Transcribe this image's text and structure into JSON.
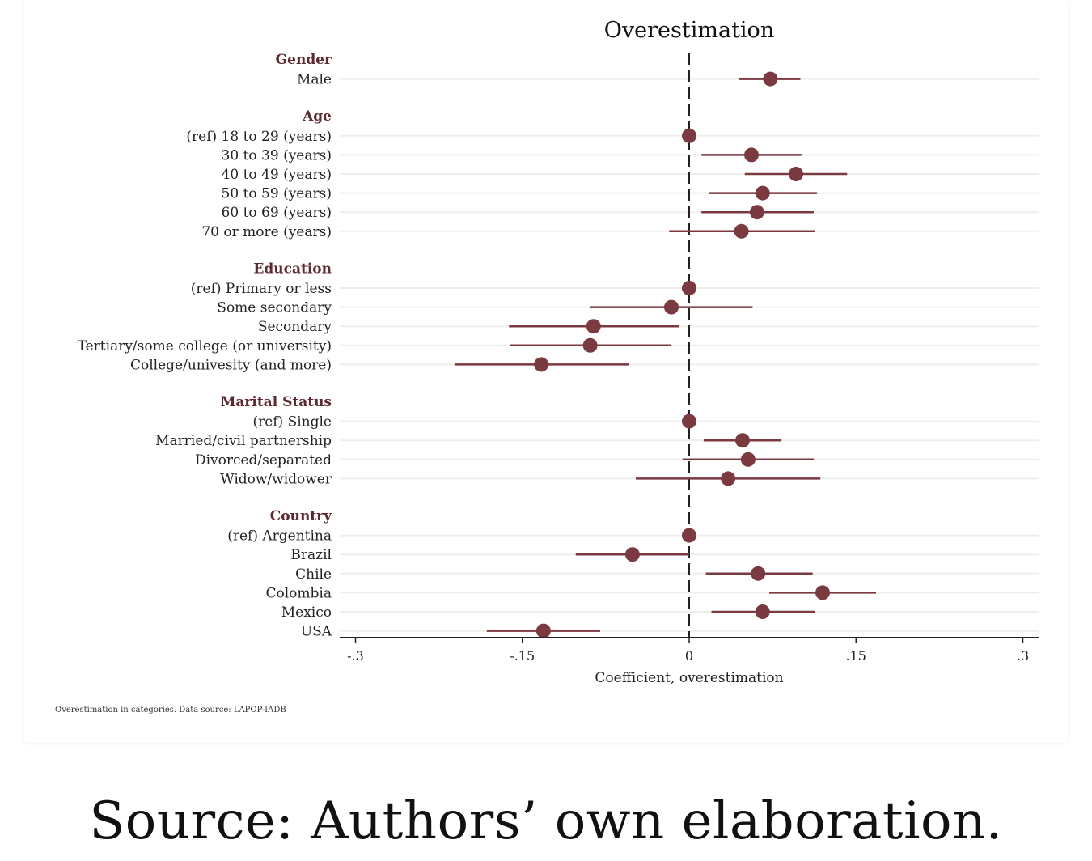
{
  "chart_data": {
    "type": "scatter",
    "title": "Overestimation",
    "xlabel": "Coefficient, overestimation",
    "xlim": [
      -0.3,
      0.3
    ],
    "xticks": [
      {
        "value": -0.3,
        "label": "-.3"
      },
      {
        "value": -0.15,
        "label": "-.15"
      },
      {
        "value": 0,
        "label": "0"
      },
      {
        "value": 0.15,
        "label": ".15"
      },
      {
        "value": 0.3,
        "label": ".3"
      }
    ],
    "reference_line": 0,
    "grid": true,
    "groups": [
      {
        "name": "Gender",
        "items": [
          {
            "label": "Male",
            "estimate": 0.073,
            "lower": 0.045,
            "upper": 0.1
          }
        ]
      },
      {
        "name": "Age",
        "items": [
          {
            "label": "(ref) 18 to 29 (years)",
            "estimate": 0.0,
            "lower": 0.0,
            "upper": 0.0
          },
          {
            "label": "30 to 39 (years)",
            "estimate": 0.056,
            "lower": 0.011,
            "upper": 0.101
          },
          {
            "label": "40 to 49 (years)",
            "estimate": 0.096,
            "lower": 0.05,
            "upper": 0.142
          },
          {
            "label": "50 to 59 (years)",
            "estimate": 0.066,
            "lower": 0.018,
            "upper": 0.115
          },
          {
            "label": "60 to 69 (years)",
            "estimate": 0.061,
            "lower": 0.011,
            "upper": 0.112
          },
          {
            "label": "70 or more (years)",
            "estimate": 0.047,
            "lower": -0.018,
            "upper": 0.113
          }
        ]
      },
      {
        "name": "Education",
        "items": [
          {
            "label": "(ref) Primary or less",
            "estimate": 0.0,
            "lower": 0.0,
            "upper": 0.0
          },
          {
            "label": "Some secondary",
            "estimate": -0.016,
            "lower": -0.089,
            "upper": 0.057
          },
          {
            "label": "Secondary",
            "estimate": -0.086,
            "lower": -0.162,
            "upper": -0.009
          },
          {
            "label": "Tertiary/some college (or university)",
            "estimate": -0.089,
            "lower": -0.161,
            "upper": -0.016
          },
          {
            "label": "College/univesity (and more)",
            "estimate": -0.133,
            "lower": -0.211,
            "upper": -0.054
          }
        ]
      },
      {
        "name": "Marital Status",
        "items": [
          {
            "label": "(ref) Single",
            "estimate": 0.0,
            "lower": 0.0,
            "upper": 0.0
          },
          {
            "label": "Married/civil partnership",
            "estimate": 0.048,
            "lower": 0.013,
            "upper": 0.083
          },
          {
            "label": "Divorced/separated",
            "estimate": 0.053,
            "lower": -0.006,
            "upper": 0.112
          },
          {
            "label": "Widow/widower",
            "estimate": 0.035,
            "lower": -0.048,
            "upper": 0.118
          }
        ]
      },
      {
        "name": "Country",
        "items": [
          {
            "label": "(ref) Argentina",
            "estimate": 0.0,
            "lower": 0.0,
            "upper": 0.0
          },
          {
            "label": "Brazil",
            "estimate": -0.051,
            "lower": -0.102,
            "upper": 0.0
          },
          {
            "label": "Chile",
            "estimate": 0.062,
            "lower": 0.015,
            "upper": 0.111
          },
          {
            "label": "Colombia",
            "estimate": 0.12,
            "lower": 0.072,
            "upper": 0.168
          },
          {
            "label": "Mexico",
            "estimate": 0.066,
            "lower": 0.02,
            "upper": 0.113
          },
          {
            "label": "USA",
            "estimate": -0.131,
            "lower": -0.182,
            "upper": -0.08
          }
        ]
      }
    ],
    "note": "Overestimation in categories. Data source: LAPOP-IADB",
    "colors": {
      "marker": "#7a3a40",
      "group_label": "#5c2a30",
      "axis": "#222222",
      "grid": "#eeeeee",
      "text": "#222222"
    }
  },
  "caption": "Source: Authors’ own elaboration."
}
